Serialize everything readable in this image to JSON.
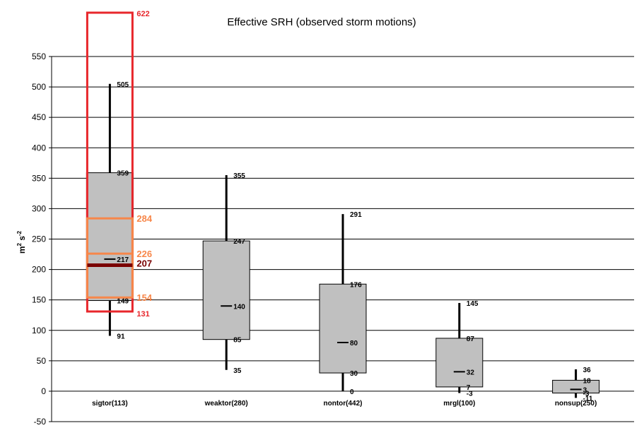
{
  "chart_data": {
    "type": "box",
    "title": "Effective SRH (observed storm motions)",
    "ylabel_main": "m",
    "ylabel_sup1": "2",
    "ylabel_mid": " s",
    "ylabel_sup2": "-2",
    "ylim": [
      -50,
      550
    ],
    "yticks": [
      -50,
      0,
      50,
      100,
      150,
      200,
      250,
      300,
      350,
      400,
      450,
      500,
      550
    ],
    "grid": true,
    "categories": [
      "sigtor(113)",
      "weaktor(280)",
      "nontor(442)",
      "mrgl(100)",
      "nonsup(250)"
    ],
    "boxes": [
      {
        "category": "sigtor(113)",
        "whisker_low": 91,
        "q1": 149,
        "median": 217,
        "q3": 359,
        "whisker_high": 505
      },
      {
        "category": "weaktor(280)",
        "whisker_low": 35,
        "q1": 85,
        "median": 140,
        "q3": 247,
        "whisker_high": 355
      },
      {
        "category": "nontor(442)",
        "whisker_low": 0,
        "q1": 30,
        "median": 80,
        "q3": 176,
        "whisker_high": 291
      },
      {
        "category": "mrgl(100)",
        "whisker_low": -3,
        "q1": 7,
        "median": 32,
        "q3": 87,
        "whisker_high": 145
      },
      {
        "category": "nonsup(250)",
        "whisker_low": -11,
        "q1": -3,
        "median": 3,
        "q3": 18,
        "whisker_high": 36
      }
    ],
    "overlay": {
      "category": "sigtor(113)",
      "outer_low": 131,
      "outer_high": 622,
      "inner_low": 154,
      "inner_mid": 226,
      "inner_high": 284,
      "center": 207,
      "colors": {
        "outer": "#e8262b",
        "inner": "#f7874a",
        "center": "#7a0000"
      }
    },
    "box_color": "#c0c0c0"
  }
}
